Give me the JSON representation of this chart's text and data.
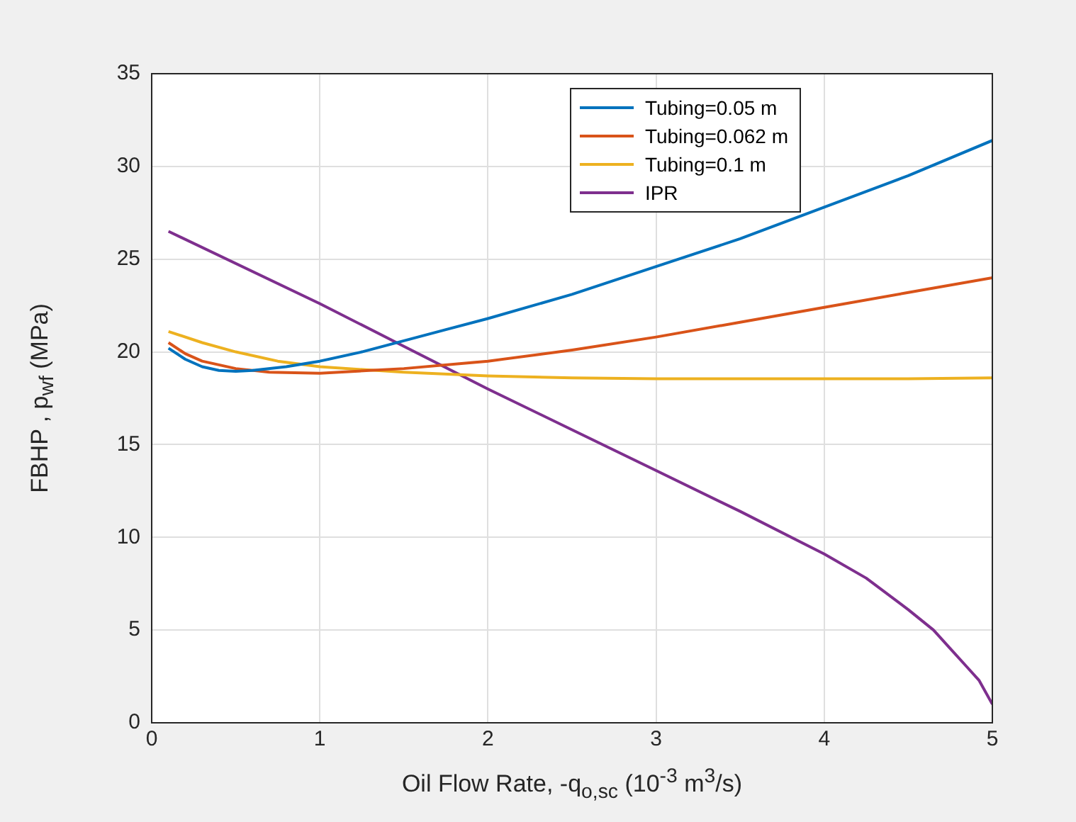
{
  "chart_data": {
    "type": "line",
    "xlabel": "Oil Flow Rate, -q$_{o,sc}$ (10$^{-3}$ m$^{3}$/s)",
    "ylabel": "FBHP , p$_{wf}$ (MPa)",
    "xlim": [
      0,
      5
    ],
    "xticks": [
      0,
      1,
      2,
      3,
      4,
      5
    ],
    "ylim": [
      0,
      35
    ],
    "yticks": [
      0,
      5,
      10,
      15,
      20,
      25,
      30,
      35
    ],
    "grid": true,
    "legend": "top right",
    "marker": "none",
    "line_style": "solid",
    "series": [
      {
        "name": "Tubing=0.05 m",
        "color": "#0072bd",
        "x": [
          0.1,
          0.2,
          0.3,
          0.4,
          0.5,
          0.6,
          0.8,
          1,
          1.25,
          1.5,
          1.75,
          2,
          2.5,
          3,
          3.5,
          4,
          4.5,
          5
        ],
        "values": [
          20.2,
          19.6,
          19.2,
          19,
          18.95,
          19,
          19.2,
          19.5,
          20,
          20.6,
          21.2,
          21.8,
          23.1,
          24.6,
          26.1,
          27.8,
          29.5,
          31.4
        ]
      },
      {
        "name": "Tubing=0.062 m",
        "color": "#d95319",
        "x": [
          0.1,
          0.2,
          0.3,
          0.5,
          0.7,
          1,
          1.5,
          2,
          2.5,
          3,
          3.5,
          4,
          4.5,
          5
        ],
        "values": [
          20.5,
          19.9,
          19.5,
          19.1,
          18.9,
          18.85,
          19.1,
          19.5,
          20.1,
          20.8,
          21.6,
          22.4,
          23.2,
          24
        ]
      },
      {
        "name": "Tubing=0.1 m",
        "color": "#edb120",
        "x": [
          0.1,
          0.3,
          0.5,
          0.75,
          1,
          1.5,
          2,
          2.5,
          3,
          3.5,
          4,
          4.5,
          5
        ],
        "values": [
          21.1,
          20.5,
          20,
          19.5,
          19.2,
          18.9,
          18.7,
          18.6,
          18.55,
          18.55,
          18.55,
          18.55,
          18.6
        ]
      },
      {
        "name": "IPR",
        "color": "#7e2f8e",
        "x": [
          0.1,
          1,
          1.5,
          2,
          2.5,
          3,
          3.5,
          4,
          4.25,
          4.5,
          4.65,
          4.75,
          4.85,
          4.92,
          5
        ],
        "values": [
          26.5,
          22.6,
          20.3,
          18,
          15.8,
          13.6,
          11.4,
          9.1,
          7.8,
          6.1,
          5,
          4,
          3,
          2.3,
          1
        ]
      }
    ]
  }
}
